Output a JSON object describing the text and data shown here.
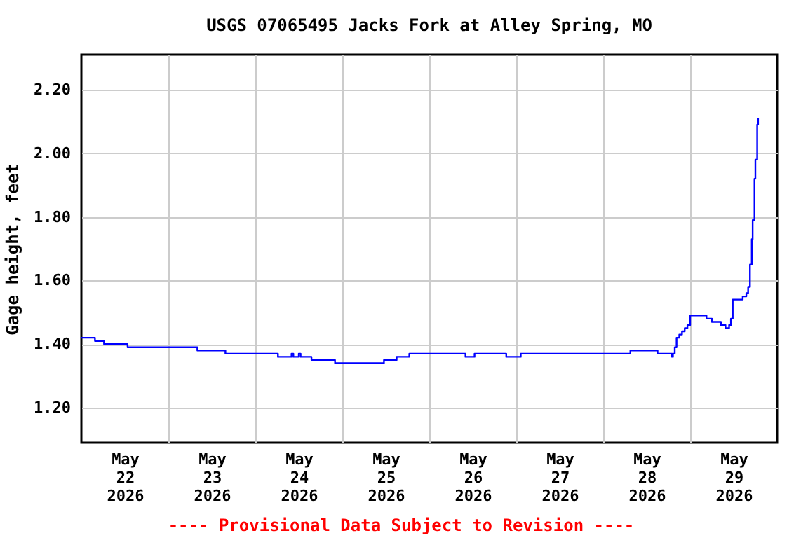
{
  "chart_data": {
    "type": "step",
    "title": "USGS 07065495 Jacks Fork at Alley Spring, MO",
    "ylabel": "Gage height, feet",
    "annotations": [
      "---- Provisional Data Subject to Revision ----"
    ],
    "x": [
      "2026-05-22T00:00",
      "2026-05-22T03:45",
      "2026-05-22T06:15",
      "2026-05-22T12:45",
      "2026-05-23T08:00",
      "2026-05-23T15:45",
      "2026-05-24T06:15",
      "2026-05-24T10:00",
      "2026-05-24T10:30",
      "2026-05-24T12:00",
      "2026-05-24T12:30",
      "2026-05-24T15:30",
      "2026-05-24T22:00",
      "2026-05-25T11:30",
      "2026-05-25T15:00",
      "2026-05-25T18:30",
      "2026-05-26T10:00",
      "2026-05-26T12:30",
      "2026-05-26T21:15",
      "2026-05-27T01:15",
      "2026-05-28T07:30",
      "2026-05-28T15:00",
      "2026-05-28T19:00",
      "2026-05-28T19:15",
      "2026-05-28T19:45",
      "2026-05-28T20:15",
      "2026-05-28T21:00",
      "2026-05-28T21:45",
      "2026-05-28T22:30",
      "2026-05-28T23:15",
      "2026-05-29T00:00",
      "2026-05-29T04:30",
      "2026-05-29T06:00",
      "2026-05-29T08:30",
      "2026-05-29T09:45",
      "2026-05-29T10:45",
      "2026-05-29T11:15",
      "2026-05-29T11:45",
      "2026-05-29T14:30",
      "2026-05-29T15:30",
      "2026-05-29T16:00",
      "2026-05-29T16:30",
      "2026-05-29T17:00",
      "2026-05-29T17:15",
      "2026-05-29T17:45",
      "2026-05-29T18:00",
      "2026-05-29T18:30",
      "2026-05-29T18:45"
    ],
    "series": [
      {
        "color": "#0000ff",
        "values": [
          1.42,
          1.41,
          1.4,
          1.39,
          1.38,
          1.37,
          1.36,
          1.37,
          1.36,
          1.37,
          1.36,
          1.35,
          1.34,
          1.35,
          1.36,
          1.37,
          1.36,
          1.37,
          1.36,
          1.37,
          1.38,
          1.37,
          1.36,
          1.37,
          1.39,
          1.42,
          1.43,
          1.44,
          1.45,
          1.46,
          1.49,
          1.48,
          1.47,
          1.46,
          1.45,
          1.46,
          1.48,
          1.54,
          1.55,
          1.56,
          1.58,
          1.65,
          1.73,
          1.79,
          1.92,
          1.98,
          2.09,
          2.11
        ]
      }
    ],
    "xlim": [
      "2026-05-22T00:00",
      "2026-05-30T00:00"
    ],
    "xticks": [
      {
        "value": "2026-05-22T12:00",
        "label": "May 22 2026"
      },
      {
        "value": "2026-05-23T12:00",
        "label": "May 23 2026"
      },
      {
        "value": "2026-05-24T12:00",
        "label": "May 24 2026"
      },
      {
        "value": "2026-05-25T12:00",
        "label": "May 25 2026"
      },
      {
        "value": "2026-05-26T12:00",
        "label": "May 26 2026"
      },
      {
        "value": "2026-05-27T12:00",
        "label": "May 27 2026"
      },
      {
        "value": "2026-05-28T12:00",
        "label": "May 28 2026"
      },
      {
        "value": "2026-05-29T12:00",
        "label": "May 29 2026"
      },
      {
        "value": "2026-05-23T00:00",
        "label": null
      },
      {
        "value": "2026-05-24T00:00",
        "label": null
      },
      {
        "value": "2026-05-25T00:00",
        "label": null
      },
      {
        "value": "2026-05-26T00:00",
        "label": null
      },
      {
        "value": "2026-05-27T00:00",
        "label": null
      },
      {
        "value": "2026-05-28T00:00",
        "label": null
      },
      {
        "value": "2026-05-29T00:00",
        "label": null
      }
    ],
    "ylim": [
      1.09,
      2.31
    ],
    "yticks": [
      {
        "value": 1.2,
        "label": "1.20"
      },
      {
        "value": 1.4,
        "label": "1.40"
      },
      {
        "value": 1.6,
        "label": "1.60"
      },
      {
        "value": 1.8,
        "label": "1.80"
      },
      {
        "value": 2.0,
        "label": "2.00"
      },
      {
        "value": 2.2,
        "label": "2.20"
      }
    ],
    "grid": true
  }
}
